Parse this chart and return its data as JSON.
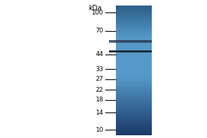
{
  "fig_width": 3.0,
  "fig_height": 2.0,
  "dpi": 100,
  "bg_color": "#ffffff",
  "marker_labels": [
    "100",
    "70",
    "44",
    "33",
    "27",
    "22",
    "18",
    "14",
    "10"
  ],
  "marker_kda_values": [
    100,
    70,
    44,
    33,
    27,
    22,
    18,
    14,
    10
  ],
  "kda_label": "kDa",
  "y_min": 9,
  "y_max": 115,
  "blot_color_top": "#2c5f8a",
  "blot_color_mid": "#5599c8",
  "blot_color_bot": "#1a3a6a",
  "band_color1": "#2a3a50",
  "band_color2": "#1a2535",
  "band1_kda": 57,
  "band2_kda": 47,
  "band1_alpha": 0.8,
  "band2_alpha": 0.95,
  "tick_fontsize": 6.5,
  "kda_fontsize": 7.0
}
